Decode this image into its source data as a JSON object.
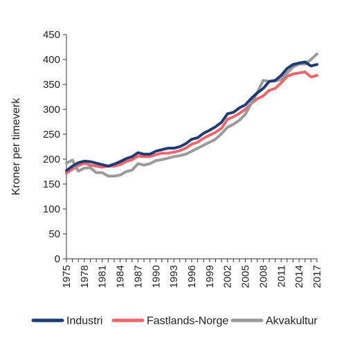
{
  "chart_data": {
    "type": "line",
    "ylabel": "Kroner per timeverk",
    "xlabel": "",
    "ylim": [
      0,
      450
    ],
    "yticks": [
      0,
      50,
      100,
      150,
      200,
      250,
      300,
      350,
      400,
      450
    ],
    "xticks": [
      1975,
      1978,
      1981,
      1984,
      1987,
      1990,
      1993,
      1996,
      1999,
      2002,
      2005,
      2008,
      2011,
      2014,
      2017
    ],
    "xlim": [
      1975,
      2017
    ],
    "grid": false,
    "legend_position": "bottom",
    "x": [
      1975,
      1976,
      1977,
      1978,
      1979,
      1980,
      1981,
      1982,
      1983,
      1984,
      1985,
      1986,
      1987,
      1988,
      1989,
      1990,
      1991,
      1992,
      1993,
      1994,
      1995,
      1996,
      1997,
      1998,
      1999,
      2000,
      2001,
      2002,
      2003,
      2004,
      2005,
      2006,
      2007,
      2008,
      2009,
      2010,
      2011,
      2012,
      2013,
      2014,
      2015,
      2016,
      2017
    ],
    "series": [
      {
        "name": "Industri",
        "color": "#1f3b73",
        "values": [
          177,
          186,
          193,
          196,
          195,
          192,
          189,
          186,
          190,
          195,
          201,
          205,
          213,
          210,
          210,
          216,
          219,
          222,
          222,
          225,
          231,
          240,
          243,
          252,
          258,
          265,
          274,
          291,
          294,
          303,
          309,
          322,
          333,
          342,
          356,
          358,
          368,
          382,
          390,
          393,
          395,
          387,
          390
        ]
      },
      {
        "name": "Fastlands-Norge",
        "color": "#f0646c",
        "values": [
          172,
          180,
          187,
          192,
          188,
          186,
          184,
          186,
          186,
          189,
          195,
          199,
          206,
          205,
          205,
          209,
          212,
          212,
          214,
          217,
          222,
          230,
          234,
          242,
          248,
          254,
          262,
          280,
          285,
          292,
          300,
          312,
          321,
          327,
          338,
          342,
          353,
          366,
          371,
          373,
          375,
          365,
          368
        ]
      },
      {
        "name": "Akvakultur",
        "color": "#9a9a9a",
        "values": [
          192,
          198,
          176,
          182,
          183,
          173,
          173,
          166,
          166,
          168,
          175,
          178,
          191,
          188,
          191,
          197,
          199,
          202,
          205,
          207,
          210,
          216,
          222,
          228,
          234,
          240,
          251,
          264,
          270,
          278,
          290,
          312,
          334,
          358,
          356,
          357,
          360,
          373,
          385,
          391,
          391,
          400,
          411
        ]
      }
    ]
  }
}
